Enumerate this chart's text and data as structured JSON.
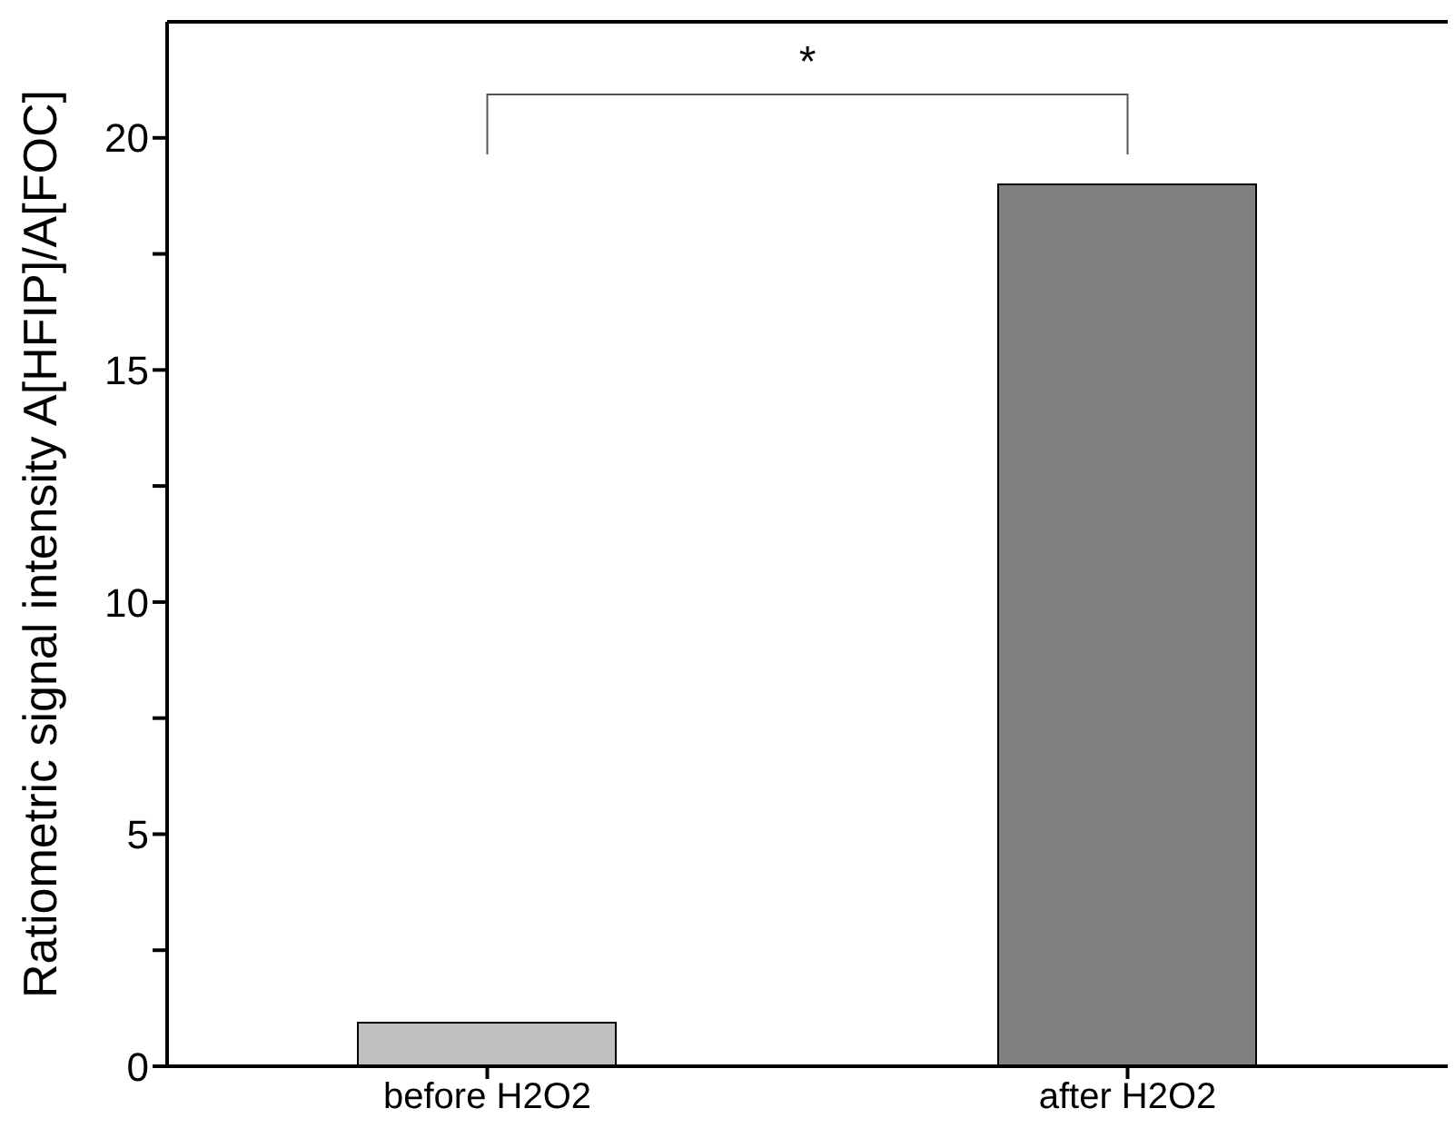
{
  "chart_data": {
    "type": "bar",
    "ylabel": "Ratiometric signal intensity A[HFIP]/A[FOC]",
    "categories": [
      "before H2O2",
      "after H2O2"
    ],
    "values": [
      0.94,
      19.0
    ],
    "colors": [
      "#c0c0c0",
      "#808080"
    ],
    "ylim": [
      0,
      22.5
    ],
    "yticks": [
      0,
      {
        "value": 2.5,
        "label": null
      },
      5,
      {
        "value": 7.5,
        "label": null
      },
      10,
      {
        "value": 12.5,
        "label": null
      },
      15,
      {
        "value": 17.5,
        "label": null
      },
      20
    ],
    "annotations": [
      "*"
    ],
    "grid": false,
    "legend": false
  }
}
